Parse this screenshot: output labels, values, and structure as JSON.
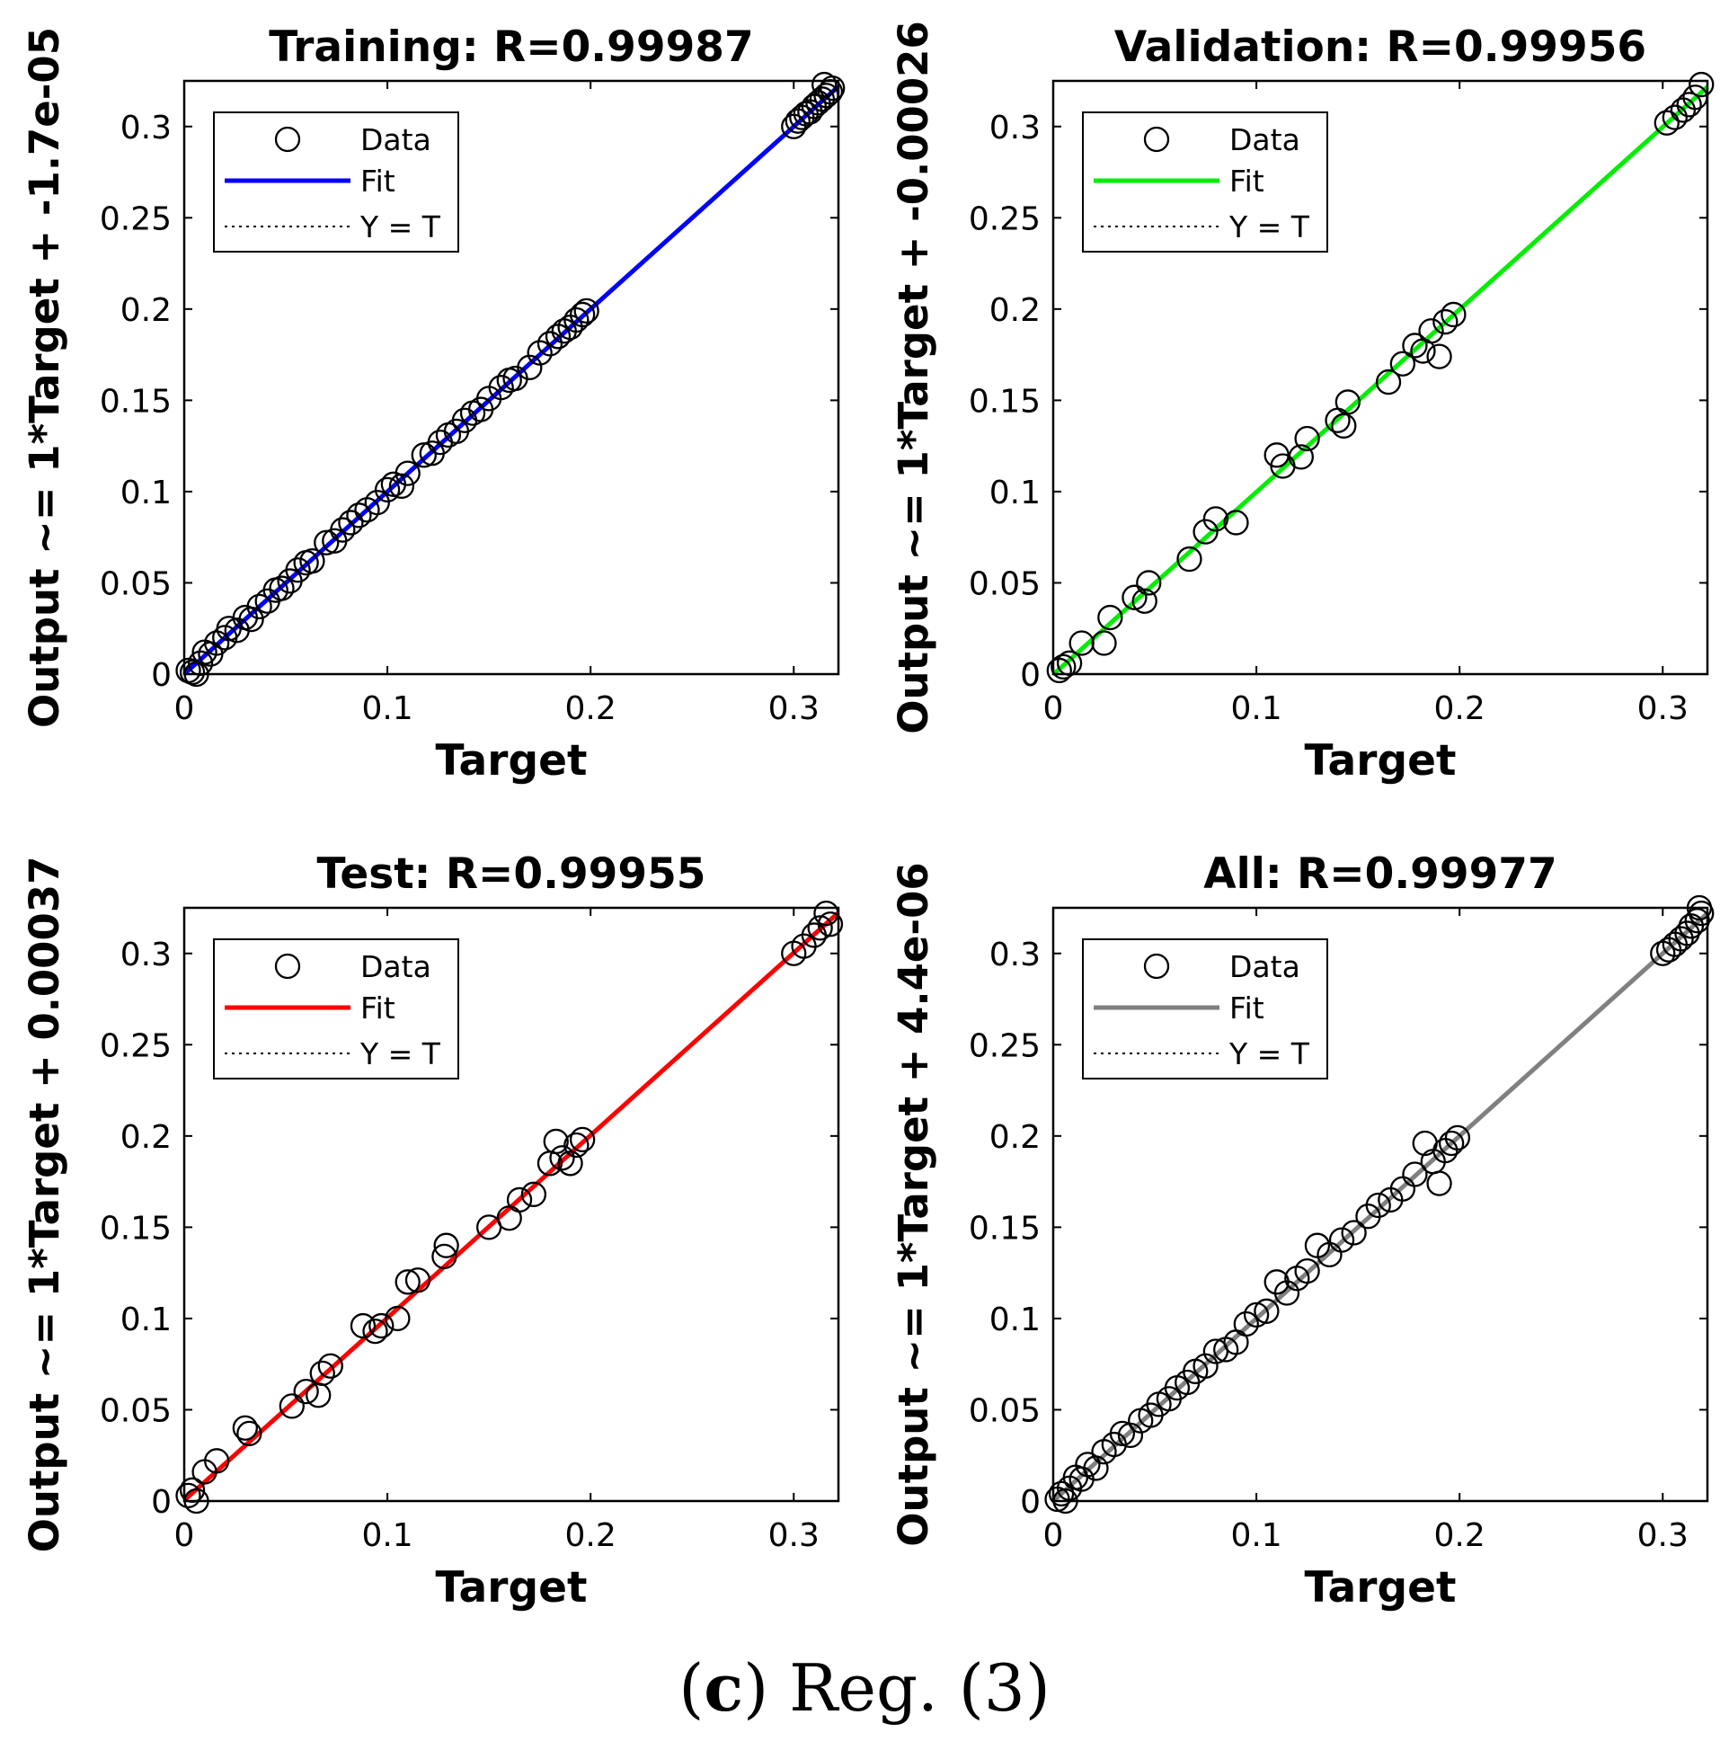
{
  "chart_data": [
    {
      "type": "scatter",
      "title": "Training: R=0.99987",
      "xlabel": "Target",
      "ylabel": "Output ~= 1*Target + -1.7e-05",
      "xlim": [
        0,
        0.322
      ],
      "ylim": [
        0,
        0.325
      ],
      "xticks": [
        "0",
        "0.1",
        "0.2",
        "0.3"
      ],
      "yticks": [
        "0",
        "0.05",
        "0.1",
        "0.15",
        "0.2",
        "0.25",
        "0.3"
      ],
      "fit": {
        "slope": 1,
        "intercept": -1.7e-05,
        "color": "#0000ff"
      },
      "legend": {
        "data": "Data",
        "fit": "Fit",
        "identity": "Y = T"
      },
      "points": [
        [
          0.002,
          0.002
        ],
        [
          0.004,
          0.001
        ],
        [
          0.006,
          0.0
        ],
        [
          0.008,
          0.006
        ],
        [
          0.01,
          0.012
        ],
        [
          0.013,
          0.011
        ],
        [
          0.016,
          0.017
        ],
        [
          0.02,
          0.02
        ],
        [
          0.022,
          0.025
        ],
        [
          0.026,
          0.024
        ],
        [
          0.03,
          0.031
        ],
        [
          0.033,
          0.03
        ],
        [
          0.037,
          0.037
        ],
        [
          0.041,
          0.04
        ],
        [
          0.045,
          0.046
        ],
        [
          0.048,
          0.047
        ],
        [
          0.052,
          0.051
        ],
        [
          0.056,
          0.057
        ],
        [
          0.06,
          0.061
        ],
        [
          0.063,
          0.062
        ],
        [
          0.07,
          0.072
        ],
        [
          0.074,
          0.073
        ],
        [
          0.078,
          0.079
        ],
        [
          0.082,
          0.083
        ],
        [
          0.086,
          0.087
        ],
        [
          0.09,
          0.09
        ],
        [
          0.095,
          0.094
        ],
        [
          0.1,
          0.101
        ],
        [
          0.103,
          0.104
        ],
        [
          0.107,
          0.103
        ],
        [
          0.11,
          0.11
        ],
        [
          0.118,
          0.12
        ],
        [
          0.122,
          0.121
        ],
        [
          0.126,
          0.127
        ],
        [
          0.13,
          0.131
        ],
        [
          0.134,
          0.133
        ],
        [
          0.138,
          0.139
        ],
        [
          0.142,
          0.143
        ],
        [
          0.146,
          0.145
        ],
        [
          0.15,
          0.151
        ],
        [
          0.156,
          0.157
        ],
        [
          0.16,
          0.161
        ],
        [
          0.163,
          0.162
        ],
        [
          0.17,
          0.168
        ],
        [
          0.175,
          0.176
        ],
        [
          0.18,
          0.181
        ],
        [
          0.184,
          0.185
        ],
        [
          0.187,
          0.188
        ],
        [
          0.19,
          0.19
        ],
        [
          0.193,
          0.194
        ],
        [
          0.196,
          0.197
        ],
        [
          0.198,
          0.199
        ],
        [
          0.3,
          0.3
        ],
        [
          0.302,
          0.303
        ],
        [
          0.304,
          0.305
        ],
        [
          0.306,
          0.307
        ],
        [
          0.308,
          0.308
        ],
        [
          0.31,
          0.311
        ],
        [
          0.312,
          0.313
        ],
        [
          0.314,
          0.315
        ],
        [
          0.316,
          0.317
        ],
        [
          0.318,
          0.319
        ],
        [
          0.315,
          0.323
        ],
        [
          0.319,
          0.321
        ]
      ]
    },
    {
      "type": "scatter",
      "title": "Validation: R=0.99956",
      "xlabel": "Target",
      "ylabel": "Output ~= 1*Target + -0.00026",
      "xlim": [
        0,
        0.322
      ],
      "ylim": [
        0,
        0.325
      ],
      "xticks": [
        "0",
        "0.1",
        "0.2",
        "0.3"
      ],
      "yticks": [
        "0",
        "0.05",
        "0.1",
        "0.15",
        "0.2",
        "0.25",
        "0.3"
      ],
      "fit": {
        "slope": 1,
        "intercept": -0.00026,
        "color": "#00ee00"
      },
      "legend": {
        "data": "Data",
        "fit": "Fit",
        "identity": "Y = T"
      },
      "points": [
        [
          0.003,
          0.002
        ],
        [
          0.005,
          0.004
        ],
        [
          0.008,
          0.006
        ],
        [
          0.014,
          0.017
        ],
        [
          0.025,
          0.017
        ],
        [
          0.028,
          0.031
        ],
        [
          0.04,
          0.042
        ],
        [
          0.045,
          0.04
        ],
        [
          0.047,
          0.05
        ],
        [
          0.067,
          0.063
        ],
        [
          0.075,
          0.078
        ],
        [
          0.08,
          0.085
        ],
        [
          0.09,
          0.083
        ],
        [
          0.11,
          0.12
        ],
        [
          0.113,
          0.114
        ],
        [
          0.122,
          0.119
        ],
        [
          0.125,
          0.129
        ],
        [
          0.14,
          0.139
        ],
        [
          0.143,
          0.136
        ],
        [
          0.145,
          0.149
        ],
        [
          0.165,
          0.16
        ],
        [
          0.172,
          0.17
        ],
        [
          0.178,
          0.18
        ],
        [
          0.182,
          0.177
        ],
        [
          0.186,
          0.188
        ],
        [
          0.19,
          0.174
        ],
        [
          0.193,
          0.193
        ],
        [
          0.197,
          0.197
        ],
        [
          0.302,
          0.302
        ],
        [
          0.306,
          0.305
        ],
        [
          0.31,
          0.309
        ],
        [
          0.313,
          0.312
        ],
        [
          0.316,
          0.316
        ],
        [
          0.319,
          0.323
        ]
      ]
    },
    {
      "type": "scatter",
      "title": "Test: R=0.99955",
      "xlabel": "Target",
      "ylabel": "Output ~= 1*Target + 0.00037",
      "xlim": [
        0,
        0.322
      ],
      "ylim": [
        0,
        0.325
      ],
      "xticks": [
        "0",
        "0.1",
        "0.2",
        "0.3"
      ],
      "yticks": [
        "0",
        "0.05",
        "0.1",
        "0.15",
        "0.2",
        "0.25",
        "0.3"
      ],
      "fit": {
        "slope": 1,
        "intercept": 0.00037,
        "color": "#ff0000"
      },
      "legend": {
        "data": "Data",
        "fit": "Fit",
        "identity": "Y = T"
      },
      "points": [
        [
          0.002,
          0.003
        ],
        [
          0.004,
          0.006
        ],
        [
          0.006,
          0.0
        ],
        [
          0.01,
          0.016
        ],
        [
          0.016,
          0.022
        ],
        [
          0.03,
          0.04
        ],
        [
          0.032,
          0.037
        ],
        [
          0.053,
          0.052
        ],
        [
          0.06,
          0.06
        ],
        [
          0.066,
          0.058
        ],
        [
          0.068,
          0.07
        ],
        [
          0.072,
          0.074
        ],
        [
          0.088,
          0.096
        ],
        [
          0.094,
          0.093
        ],
        [
          0.097,
          0.096
        ],
        [
          0.105,
          0.1
        ],
        [
          0.11,
          0.12
        ],
        [
          0.115,
          0.121
        ],
        [
          0.128,
          0.134
        ],
        [
          0.129,
          0.14
        ],
        [
          0.15,
          0.15
        ],
        [
          0.16,
          0.155
        ],
        [
          0.165,
          0.165
        ],
        [
          0.172,
          0.168
        ],
        [
          0.18,
          0.185
        ],
        [
          0.183,
          0.197
        ],
        [
          0.186,
          0.188
        ],
        [
          0.19,
          0.185
        ],
        [
          0.193,
          0.195
        ],
        [
          0.196,
          0.198
        ],
        [
          0.3,
          0.3
        ],
        [
          0.305,
          0.304
        ],
        [
          0.31,
          0.31
        ],
        [
          0.313,
          0.314
        ],
        [
          0.316,
          0.322
        ],
        [
          0.318,
          0.316
        ]
      ]
    },
    {
      "type": "scatter",
      "title": "All: R=0.99977",
      "xlabel": "Target",
      "ylabel": "Output ~= 1*Target + 4.4e-06",
      "xlim": [
        0,
        0.322
      ],
      "ylim": [
        0,
        0.325
      ],
      "xticks": [
        "0",
        "0.1",
        "0.2",
        "0.3"
      ],
      "yticks": [
        "0",
        "0.05",
        "0.1",
        "0.15",
        "0.2",
        "0.25",
        "0.3"
      ],
      "fit": {
        "slope": 1,
        "intercept": 4.4e-06,
        "color": "#808080"
      },
      "legend": {
        "data": "Data",
        "fit": "Fit",
        "identity": "Y = T"
      },
      "points": [
        [
          0.002,
          0.001
        ],
        [
          0.004,
          0.004
        ],
        [
          0.006,
          0.0
        ],
        [
          0.008,
          0.007
        ],
        [
          0.011,
          0.013
        ],
        [
          0.014,
          0.012
        ],
        [
          0.017,
          0.02
        ],
        [
          0.021,
          0.018
        ],
        [
          0.025,
          0.027
        ],
        [
          0.03,
          0.031
        ],
        [
          0.034,
          0.037
        ],
        [
          0.038,
          0.036
        ],
        [
          0.043,
          0.044
        ],
        [
          0.048,
          0.047
        ],
        [
          0.052,
          0.053
        ],
        [
          0.057,
          0.056
        ],
        [
          0.061,
          0.062
        ],
        [
          0.066,
          0.065
        ],
        [
          0.07,
          0.071
        ],
        [
          0.075,
          0.074
        ],
        [
          0.08,
          0.082
        ],
        [
          0.085,
          0.083
        ],
        [
          0.09,
          0.087
        ],
        [
          0.095,
          0.097
        ],
        [
          0.1,
          0.102
        ],
        [
          0.105,
          0.104
        ],
        [
          0.11,
          0.12
        ],
        [
          0.115,
          0.114
        ],
        [
          0.12,
          0.122
        ],
        [
          0.125,
          0.126
        ],
        [
          0.13,
          0.14
        ],
        [
          0.136,
          0.135
        ],
        [
          0.142,
          0.143
        ],
        [
          0.148,
          0.147
        ],
        [
          0.155,
          0.156
        ],
        [
          0.16,
          0.162
        ],
        [
          0.166,
          0.165
        ],
        [
          0.172,
          0.171
        ],
        [
          0.178,
          0.179
        ],
        [
          0.183,
          0.196
        ],
        [
          0.187,
          0.186
        ],
        [
          0.19,
          0.174
        ],
        [
          0.193,
          0.192
        ],
        [
          0.196,
          0.196
        ],
        [
          0.199,
          0.199
        ],
        [
          0.3,
          0.3
        ],
        [
          0.303,
          0.302
        ],
        [
          0.306,
          0.305
        ],
        [
          0.309,
          0.308
        ],
        [
          0.312,
          0.311
        ],
        [
          0.314,
          0.315
        ],
        [
          0.317,
          0.318
        ],
        [
          0.319,
          0.322
        ],
        [
          0.318,
          0.325
        ]
      ]
    }
  ],
  "caption": {
    "label": "c",
    "text": "Reg. (3)"
  }
}
